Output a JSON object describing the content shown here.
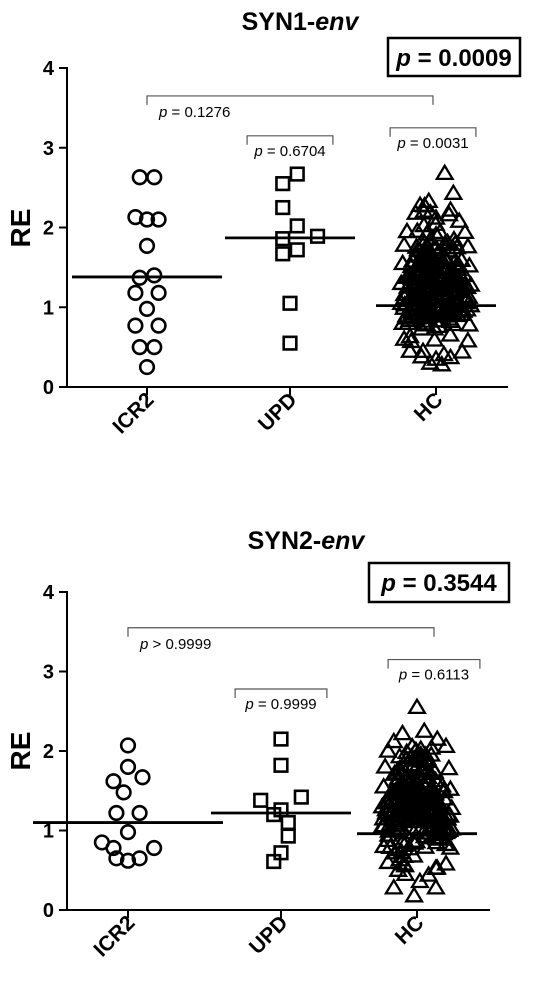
{
  "chart_data": [
    {
      "type": "scatter",
      "title_main": "SYN1-",
      "title_italic": "env",
      "ylabel": "RE",
      "xlabel": "",
      "ylim": [
        0,
        4
      ],
      "yticks": [
        "0",
        "1",
        "2",
        "3",
        "4"
      ],
      "categories": [
        "ICR2",
        "UPD",
        "HC"
      ],
      "overall_p": {
        "prefix": "p",
        "rest": " = 0.0009"
      },
      "comparisons": [
        {
          "from": 0,
          "to": 2,
          "level": 3.65,
          "prefix": "p",
          "rest": " = 0.1276",
          "label_side": "left"
        },
        {
          "from": 0.7,
          "to": 1.3,
          "level": 3.15,
          "prefix": "p",
          "rest": " = 0.6704",
          "label_side": "center"
        },
        {
          "from": 1.7,
          "to": 2.3,
          "level": 3.25,
          "prefix": "p",
          "rest": " = 0.0031",
          "label_side": "center"
        }
      ],
      "series": [
        {
          "marker": "circle",
          "median": 1.38,
          "points": [
            [
              -0.05,
              2.63
            ],
            [
              0.05,
              2.63
            ],
            [
              -0.08,
              2.13
            ],
            [
              0.0,
              2.1
            ],
            [
              0.08,
              2.1
            ],
            [
              0.0,
              1.77
            ],
            [
              -0.05,
              1.37
            ],
            [
              0.05,
              1.4
            ],
            [
              -0.08,
              1.18
            ],
            [
              0.08,
              1.18
            ],
            [
              0.0,
              0.98
            ],
            [
              -0.08,
              0.77
            ],
            [
              0.08,
              0.77
            ],
            [
              -0.05,
              0.5
            ],
            [
              0.05,
              0.5
            ],
            [
              0.0,
              0.25
            ]
          ]
        },
        {
          "marker": "square",
          "median": 1.87,
          "points": [
            [
              -0.05,
              2.55
            ],
            [
              0.05,
              2.67
            ],
            [
              -0.05,
              2.25
            ],
            [
              0.05,
              2.02
            ],
            [
              -0.05,
              1.86
            ],
            [
              0.19,
              1.89
            ],
            [
              -0.05,
              1.67
            ],
            [
              0.05,
              1.72
            ],
            [
              0.0,
              1.05
            ],
            [
              0.0,
              0.55
            ]
          ]
        },
        {
          "marker": "triangle",
          "median": 1.02,
          "cloud_n": 230,
          "points": [
            [
              0.06,
              2.68
            ],
            [
              0.12,
              2.43
            ],
            [
              -0.11,
              2.28
            ],
            [
              -0.05,
              2.33
            ],
            [
              0.1,
              2.22
            ],
            [
              -0.14,
              2.18
            ],
            [
              0.16,
              2.08
            ],
            [
              0.0,
              2.12
            ],
            [
              -0.2,
              1.95
            ],
            [
              0.2,
              1.94
            ],
            [
              -0.22,
              1.78
            ],
            [
              0.22,
              1.76
            ],
            [
              -0.23,
              1.55
            ],
            [
              0.23,
              1.52
            ],
            [
              -0.24,
              1.3
            ],
            [
              0.24,
              1.28
            ],
            [
              -0.24,
              1.05
            ],
            [
              0.24,
              1.02
            ],
            [
              -0.23,
              0.8
            ],
            [
              0.23,
              0.78
            ],
            [
              -0.22,
              0.6
            ],
            [
              0.22,
              0.58
            ],
            [
              -0.18,
              0.45
            ],
            [
              0.18,
              0.44
            ],
            [
              -0.1,
              0.38
            ],
            [
              0.1,
              0.37
            ],
            [
              -0.04,
              0.3
            ],
            [
              0.04,
              0.28
            ],
            [
              0.0,
              0.35
            ]
          ]
        }
      ]
    },
    {
      "type": "scatter",
      "title_main": "SYN2-",
      "title_italic": "env",
      "ylabel": "RE",
      "xlabel": "",
      "ylim": [
        0,
        4
      ],
      "yticks": [
        "0",
        "1",
        "2",
        "3",
        "4"
      ],
      "categories": [
        "ICR2",
        "UPD",
        "HC"
      ],
      "overall_p": {
        "prefix": "p",
        "rest": " = 0.3544"
      },
      "comparisons": [
        {
          "from": 0,
          "to": 2,
          "level": 3.55,
          "prefix": "p",
          "rest": " > 0.9999",
          "label_side": "left"
        },
        {
          "from": 0.7,
          "to": 1.3,
          "level": 2.78,
          "prefix": "p",
          "rest": " = 0.9999",
          "label_side": "center"
        },
        {
          "from": 1.7,
          "to": 2.3,
          "level": 3.15,
          "prefix": "p",
          "rest": " = 0.6113",
          "label_side": "center"
        }
      ],
      "series": [
        {
          "marker": "circle",
          "median": 1.1,
          "points": [
            [
              0.0,
              2.07
            ],
            [
              0.0,
              1.8
            ],
            [
              -0.1,
              1.62
            ],
            [
              0.1,
              1.67
            ],
            [
              -0.03,
              1.48
            ],
            [
              -0.08,
              1.22
            ],
            [
              0.08,
              1.22
            ],
            [
              0.0,
              0.98
            ],
            [
              -0.18,
              0.85
            ],
            [
              0.18,
              0.78
            ],
            [
              -0.1,
              0.78
            ],
            [
              -0.08,
              0.65
            ],
            [
              0.0,
              0.62
            ],
            [
              0.08,
              0.65
            ]
          ]
        },
        {
          "marker": "square",
          "median": 1.22,
          "points": [
            [
              0.0,
              2.15
            ],
            [
              0.0,
              1.82
            ],
            [
              -0.14,
              1.38
            ],
            [
              0.14,
              1.42
            ],
            [
              0.0,
              1.26
            ],
            [
              -0.05,
              1.2
            ],
            [
              0.05,
              1.1
            ],
            [
              0.05,
              0.93
            ],
            [
              0.0,
              0.72
            ],
            [
              -0.05,
              0.61
            ]
          ]
        },
        {
          "marker": "triangle",
          "median": 0.96,
          "cloud_n": 240,
          "points": [
            [
              0.0,
              2.55
            ],
            [
              0.05,
              2.25
            ],
            [
              -0.1,
              2.22
            ],
            [
              0.14,
              2.15
            ],
            [
              -0.16,
              2.12
            ],
            [
              0.2,
              2.06
            ],
            [
              -0.2,
              2.0
            ],
            [
              -0.22,
              1.8
            ],
            [
              0.22,
              1.78
            ],
            [
              -0.23,
              1.55
            ],
            [
              0.23,
              1.52
            ],
            [
              -0.24,
              1.3
            ],
            [
              0.24,
              1.28
            ],
            [
              -0.24,
              1.05
            ],
            [
              0.24,
              1.02
            ],
            [
              -0.23,
              0.8
            ],
            [
              0.23,
              0.78
            ],
            [
              -0.2,
              0.6
            ],
            [
              0.2,
              0.58
            ],
            [
              -0.08,
              0.45
            ],
            [
              0.08,
              0.44
            ],
            [
              -0.16,
              0.28
            ],
            [
              0.13,
              0.28
            ],
            [
              -0.02,
              0.18
            ],
            [
              0.02,
              0.36
            ]
          ]
        }
      ]
    }
  ]
}
